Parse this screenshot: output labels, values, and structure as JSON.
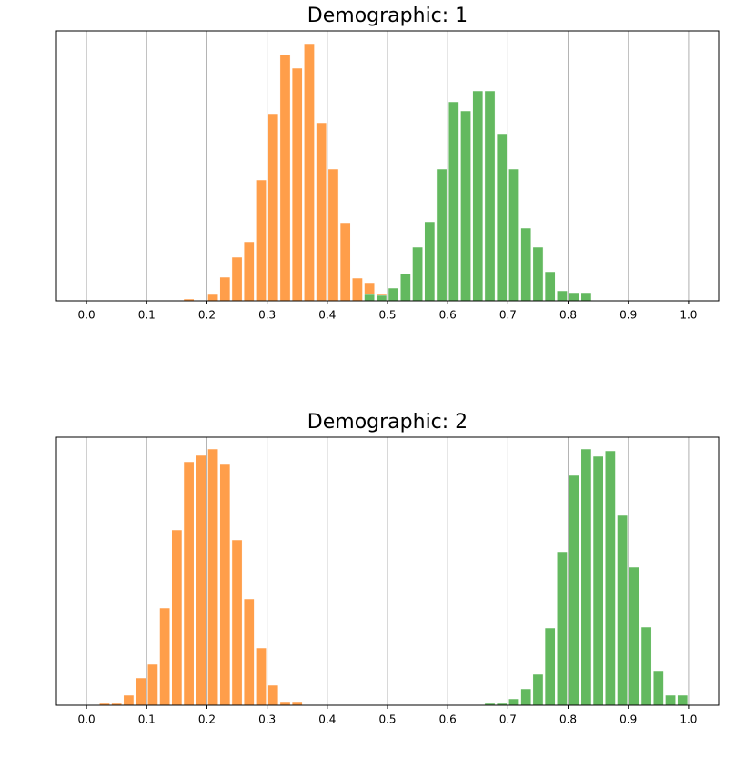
{
  "chart_data": [
    {
      "type": "histogram",
      "title": "Demographic: 1",
      "xlim": [
        -0.05,
        1.05
      ],
      "ylim": [
        0,
        297
      ],
      "xticks": [
        {
          "value": 0,
          "label": "0.0"
        },
        0.1,
        0.2,
        0.3,
        0.4,
        0.5,
        0.6,
        0.7,
        0.8,
        0.9,
        {
          "value": 1,
          "label": "1.0"
        }
      ],
      "grid": true,
      "series": [
        {
          "color": "#ff9e4a",
          "bins": [
            0.16,
            0.18,
            0.2,
            0.22,
            0.24,
            0.26,
            0.28,
            0.3,
            0.32,
            0.34,
            0.36,
            0.38,
            0.4,
            0.42,
            0.44,
            0.46,
            0.48,
            0.5,
            0.52
          ],
          "values": [
            2,
            0,
            7,
            26,
            48,
            65,
            133,
            206,
            271,
            256,
            283,
            196,
            145,
            86,
            25,
            20,
            8,
            0
          ]
        },
        {
          "color": "#63b95f",
          "bins": [
            0.46,
            0.48,
            0.5,
            0.52,
            0.54,
            0.56,
            0.58,
            0.6,
            0.62,
            0.64,
            0.66,
            0.68,
            0.7,
            0.72,
            0.74,
            0.76,
            0.78,
            0.8,
            0.82,
            0.84
          ],
          "values": [
            7,
            6,
            14,
            30,
            59,
            87,
            145,
            219,
            209,
            231,
            231,
            184,
            145,
            80,
            59,
            32,
            11,
            9,
            9
          ]
        }
      ]
    },
    {
      "type": "histogram",
      "title": "Demographic: 2",
      "xlim": [
        -0.05,
        1.05
      ],
      "ylim": [
        0,
        295
      ],
      "xticks": [
        {
          "value": 0,
          "label": "0.0"
        },
        0.1,
        0.2,
        0.3,
        0.4,
        0.5,
        0.6,
        0.7,
        0.8,
        0.9,
        {
          "value": 1,
          "label": "1.0"
        }
      ],
      "grid": true,
      "series": [
        {
          "color": "#ff9e4a",
          "bins": [
            0.02,
            0.04,
            0.06,
            0.08,
            0.1,
            0.12,
            0.14,
            0.16,
            0.18,
            0.2,
            0.22,
            0.24,
            0.26,
            0.28,
            0.3,
            0.32,
            0.34,
            0.36
          ],
          "values": [
            2,
            2,
            11,
            30,
            45,
            107,
            193,
            268,
            275,
            282,
            265,
            182,
            117,
            63,
            22,
            4,
            4
          ]
        },
        {
          "color": "#63b95f",
          "bins": [
            0.66,
            0.68,
            0.7,
            0.72,
            0.74,
            0.76,
            0.78,
            0.8,
            0.82,
            0.84,
            0.86,
            0.88,
            0.9,
            0.92,
            0.94,
            0.96,
            0.98,
            1.0
          ],
          "values": [
            2,
            2,
            7,
            18,
            34,
            85,
            169,
            253,
            282,
            274,
            280,
            209,
            152,
            86,
            38,
            11,
            11
          ]
        }
      ]
    }
  ]
}
